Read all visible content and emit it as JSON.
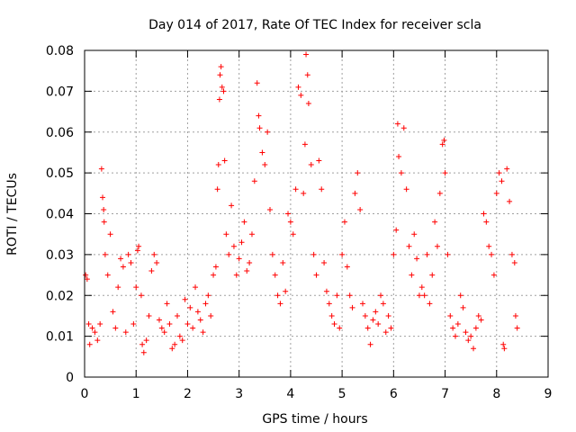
{
  "chart_data": {
    "type": "scatter",
    "title": "Day 014 of 2017, Rate Of TEC Index for receiver scla",
    "xlabel": "GPS time / hours",
    "ylabel": "ROTI / TECUs",
    "xlim": [
      0,
      9
    ],
    "ylim": [
      0,
      0.08
    ],
    "x_ticks": [
      0,
      1,
      2,
      3,
      4,
      5,
      6,
      7,
      8,
      9
    ],
    "x_tick_labels": [
      "0",
      "1",
      "2",
      "3",
      "4",
      "5",
      "6",
      "7",
      "8",
      "9"
    ],
    "y_ticks": [
      0,
      0.01,
      0.02,
      0.03,
      0.04,
      0.05,
      0.06,
      0.07,
      0.08
    ],
    "y_tick_labels": [
      "0",
      "0.01",
      "0.02",
      "0.03",
      "0.04",
      "0.05",
      "0.06",
      "0.07",
      "0.08"
    ],
    "grid": true,
    "marker": "+",
    "color": "#ff0000",
    "series": [
      {
        "name": "ROTI",
        "points": [
          [
            0.02,
            0.025
          ],
          [
            0.05,
            0.024
          ],
          [
            0.08,
            0.013
          ],
          [
            0.1,
            0.008
          ],
          [
            0.15,
            0.012
          ],
          [
            0.2,
            0.011
          ],
          [
            0.25,
            0.009
          ],
          [
            0.3,
            0.013
          ],
          [
            0.33,
            0.051
          ],
          [
            0.35,
            0.044
          ],
          [
            0.37,
            0.041
          ],
          [
            0.38,
            0.038
          ],
          [
            0.4,
            0.03
          ],
          [
            0.45,
            0.025
          ],
          [
            0.5,
            0.035
          ],
          [
            0.55,
            0.016
          ],
          [
            0.6,
            0.012
          ],
          [
            0.65,
            0.022
          ],
          [
            0.7,
            0.029
          ],
          [
            0.75,
            0.027
          ],
          [
            0.8,
            0.011
          ],
          [
            0.85,
            0.03
          ],
          [
            0.9,
            0.028
          ],
          [
            0.95,
            0.013
          ],
          [
            1.0,
            0.022
          ],
          [
            1.03,
            0.031
          ],
          [
            1.05,
            0.032
          ],
          [
            1.1,
            0.02
          ],
          [
            1.12,
            0.008
          ],
          [
            1.15,
            0.006
          ],
          [
            1.2,
            0.009
          ],
          [
            1.25,
            0.015
          ],
          [
            1.3,
            0.026
          ],
          [
            1.35,
            0.03
          ],
          [
            1.4,
            0.028
          ],
          [
            1.45,
            0.014
          ],
          [
            1.5,
            0.012
          ],
          [
            1.55,
            0.011
          ],
          [
            1.6,
            0.018
          ],
          [
            1.65,
            0.013
          ],
          [
            1.7,
            0.007
          ],
          [
            1.75,
            0.008
          ],
          [
            1.8,
            0.015
          ],
          [
            1.85,
            0.01
          ],
          [
            1.9,
            0.009
          ],
          [
            1.95,
            0.019
          ],
          [
            2.0,
            0.013
          ],
          [
            2.05,
            0.017
          ],
          [
            2.1,
            0.012
          ],
          [
            2.15,
            0.022
          ],
          [
            2.2,
            0.016
          ],
          [
            2.25,
            0.014
          ],
          [
            2.3,
            0.011
          ],
          [
            2.35,
            0.018
          ],
          [
            2.4,
            0.02
          ],
          [
            2.45,
            0.015
          ],
          [
            2.5,
            0.025
          ],
          [
            2.55,
            0.027
          ],
          [
            2.58,
            0.046
          ],
          [
            2.6,
            0.052
          ],
          [
            2.62,
            0.068
          ],
          [
            2.63,
            0.074
          ],
          [
            2.65,
            0.076
          ],
          [
            2.67,
            0.071
          ],
          [
            2.7,
            0.07
          ],
          [
            2.72,
            0.053
          ],
          [
            2.75,
            0.035
          ],
          [
            2.8,
            0.03
          ],
          [
            2.85,
            0.042
          ],
          [
            2.9,
            0.032
          ],
          [
            2.95,
            0.025
          ],
          [
            3.0,
            0.029
          ],
          [
            3.05,
            0.033
          ],
          [
            3.1,
            0.038
          ],
          [
            3.15,
            0.026
          ],
          [
            3.2,
            0.028
          ],
          [
            3.25,
            0.035
          ],
          [
            3.3,
            0.048
          ],
          [
            3.35,
            0.072
          ],
          [
            3.38,
            0.064
          ],
          [
            3.4,
            0.061
          ],
          [
            3.45,
            0.055
          ],
          [
            3.5,
            0.052
          ],
          [
            3.55,
            0.06
          ],
          [
            3.6,
            0.041
          ],
          [
            3.65,
            0.03
          ],
          [
            3.7,
            0.025
          ],
          [
            3.75,
            0.02
          ],
          [
            3.8,
            0.018
          ],
          [
            3.85,
            0.028
          ],
          [
            3.9,
            0.021
          ],
          [
            3.95,
            0.04
          ],
          [
            4.0,
            0.038
          ],
          [
            4.05,
            0.035
          ],
          [
            4.1,
            0.046
          ],
          [
            4.15,
            0.071
          ],
          [
            4.2,
            0.069
          ],
          [
            4.25,
            0.045
          ],
          [
            4.28,
            0.057
          ],
          [
            4.3,
            0.079
          ],
          [
            4.33,
            0.074
          ],
          [
            4.35,
            0.067
          ],
          [
            4.4,
            0.052
          ],
          [
            4.45,
            0.03
          ],
          [
            4.5,
            0.025
          ],
          [
            4.55,
            0.053
          ],
          [
            4.6,
            0.046
          ],
          [
            4.65,
            0.028
          ],
          [
            4.7,
            0.021
          ],
          [
            4.75,
            0.018
          ],
          [
            4.8,
            0.015
          ],
          [
            4.85,
            0.013
          ],
          [
            4.9,
            0.02
          ],
          [
            4.95,
            0.012
          ],
          [
            5.0,
            0.03
          ],
          [
            5.05,
            0.038
          ],
          [
            5.1,
            0.027
          ],
          [
            5.15,
            0.02
          ],
          [
            5.2,
            0.017
          ],
          [
            5.25,
            0.045
          ],
          [
            5.3,
            0.05
          ],
          [
            5.35,
            0.041
          ],
          [
            5.4,
            0.018
          ],
          [
            5.45,
            0.015
          ],
          [
            5.5,
            0.012
          ],
          [
            5.55,
            0.008
          ],
          [
            5.6,
            0.014
          ],
          [
            5.65,
            0.016
          ],
          [
            5.7,
            0.013
          ],
          [
            5.75,
            0.02
          ],
          [
            5.8,
            0.018
          ],
          [
            5.85,
            0.011
          ],
          [
            5.9,
            0.015
          ],
          [
            5.95,
            0.012
          ],
          [
            6.0,
            0.03
          ],
          [
            6.05,
            0.036
          ],
          [
            6.08,
            0.062
          ],
          [
            6.1,
            0.054
          ],
          [
            6.15,
            0.05
          ],
          [
            6.2,
            0.061
          ],
          [
            6.25,
            0.046
          ],
          [
            6.3,
            0.032
          ],
          [
            6.35,
            0.025
          ],
          [
            6.4,
            0.035
          ],
          [
            6.45,
            0.029
          ],
          [
            6.5,
            0.02
          ],
          [
            6.55,
            0.022
          ],
          [
            6.6,
            0.02
          ],
          [
            6.65,
            0.03
          ],
          [
            6.7,
            0.018
          ],
          [
            6.75,
            0.025
          ],
          [
            6.8,
            0.038
          ],
          [
            6.85,
            0.032
          ],
          [
            6.9,
            0.045
          ],
          [
            6.95,
            0.057
          ],
          [
            6.98,
            0.058
          ],
          [
            7.0,
            0.05
          ],
          [
            7.05,
            0.03
          ],
          [
            7.1,
            0.015
          ],
          [
            7.15,
            0.012
          ],
          [
            7.2,
            0.01
          ],
          [
            7.25,
            0.013
          ],
          [
            7.3,
            0.02
          ],
          [
            7.35,
            0.017
          ],
          [
            7.4,
            0.011
          ],
          [
            7.45,
            0.009
          ],
          [
            7.5,
            0.01
          ],
          [
            7.55,
            0.007
          ],
          [
            7.6,
            0.012
          ],
          [
            7.65,
            0.015
          ],
          [
            7.7,
            0.014
          ],
          [
            7.75,
            0.04
          ],
          [
            7.8,
            0.038
          ],
          [
            7.85,
            0.032
          ],
          [
            7.9,
            0.03
          ],
          [
            7.95,
            0.025
          ],
          [
            8.0,
            0.045
          ],
          [
            8.05,
            0.05
          ],
          [
            8.1,
            0.048
          ],
          [
            8.13,
            0.008
          ],
          [
            8.15,
            0.007
          ],
          [
            8.2,
            0.051
          ],
          [
            8.25,
            0.043
          ],
          [
            8.3,
            0.03
          ],
          [
            8.35,
            0.028
          ],
          [
            8.37,
            0.015
          ],
          [
            8.4,
            0.012
          ]
        ]
      }
    ]
  }
}
